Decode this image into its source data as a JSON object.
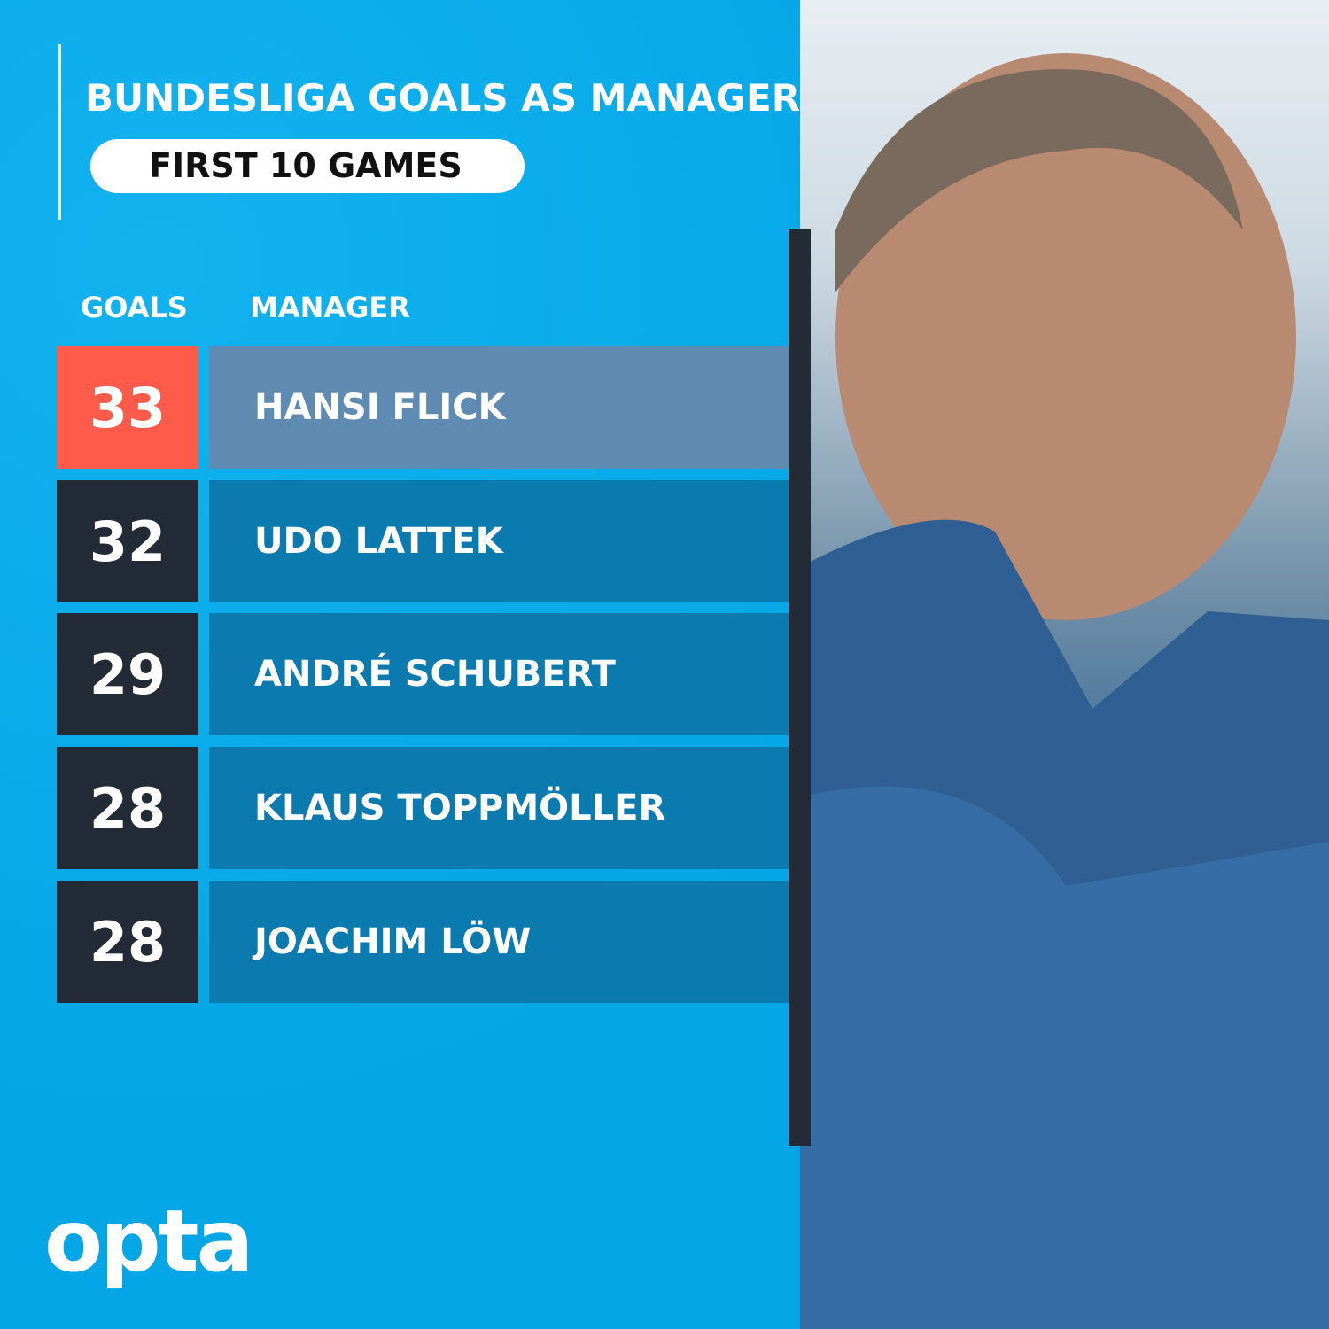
{
  "title": "BUNDESLIGA GOALS AS MANAGER",
  "subtitle": "FIRST 10 GAMES",
  "brand": "opta",
  "colors": {
    "background": "#07aae9",
    "highlight_goals": "#fe5b4a",
    "highlight_name": "#5f8bb2",
    "goals_cell": "#222b36",
    "name_cell": "#0b7aae"
  },
  "chart_data": {
    "type": "table",
    "title": "BUNDESLIGA GOALS AS MANAGER",
    "subtitle": "FIRST 10 GAMES",
    "columns": [
      "GOALS",
      "MANAGER"
    ],
    "rows": [
      {
        "goals": "33",
        "manager": "HANSI FLICK",
        "highlight": true
      },
      {
        "goals": "32",
        "manager": "UDO LATTEK"
      },
      {
        "goals": "29",
        "manager": "ANDRÉ SCHUBERT"
      },
      {
        "goals": "28",
        "manager": "KLAUS TOPPMÖLLER"
      },
      {
        "goals": "28",
        "manager": "JOACHIM LÖW"
      }
    ]
  }
}
